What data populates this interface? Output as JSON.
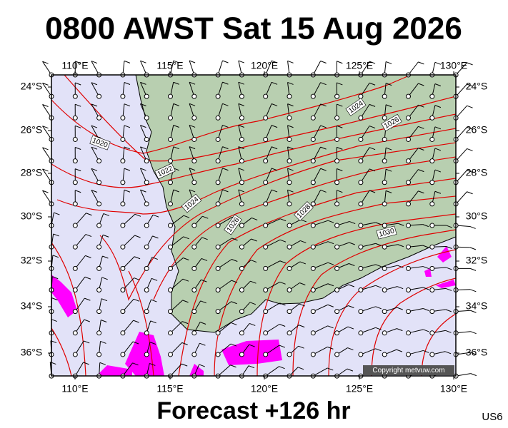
{
  "title": "0800 AWST Sat 15 Aug 2026",
  "longitude_labels": [
    "110°E",
    "115°E",
    "120°E",
    "125°E",
    "130°E"
  ],
  "latitude_labels": [
    "24°S",
    "26°S",
    "28°S",
    "30°S",
    "32°S",
    "34°S",
    "36°S"
  ],
  "isobar_labels": [
    "1020",
    "1022",
    "1024",
    "1026",
    "1028",
    "1030",
    "1024",
    "1026"
  ],
  "copyright": "Copyright metvuw.com",
  "footer": "Forecast +126 hr",
  "code": "US6"
}
